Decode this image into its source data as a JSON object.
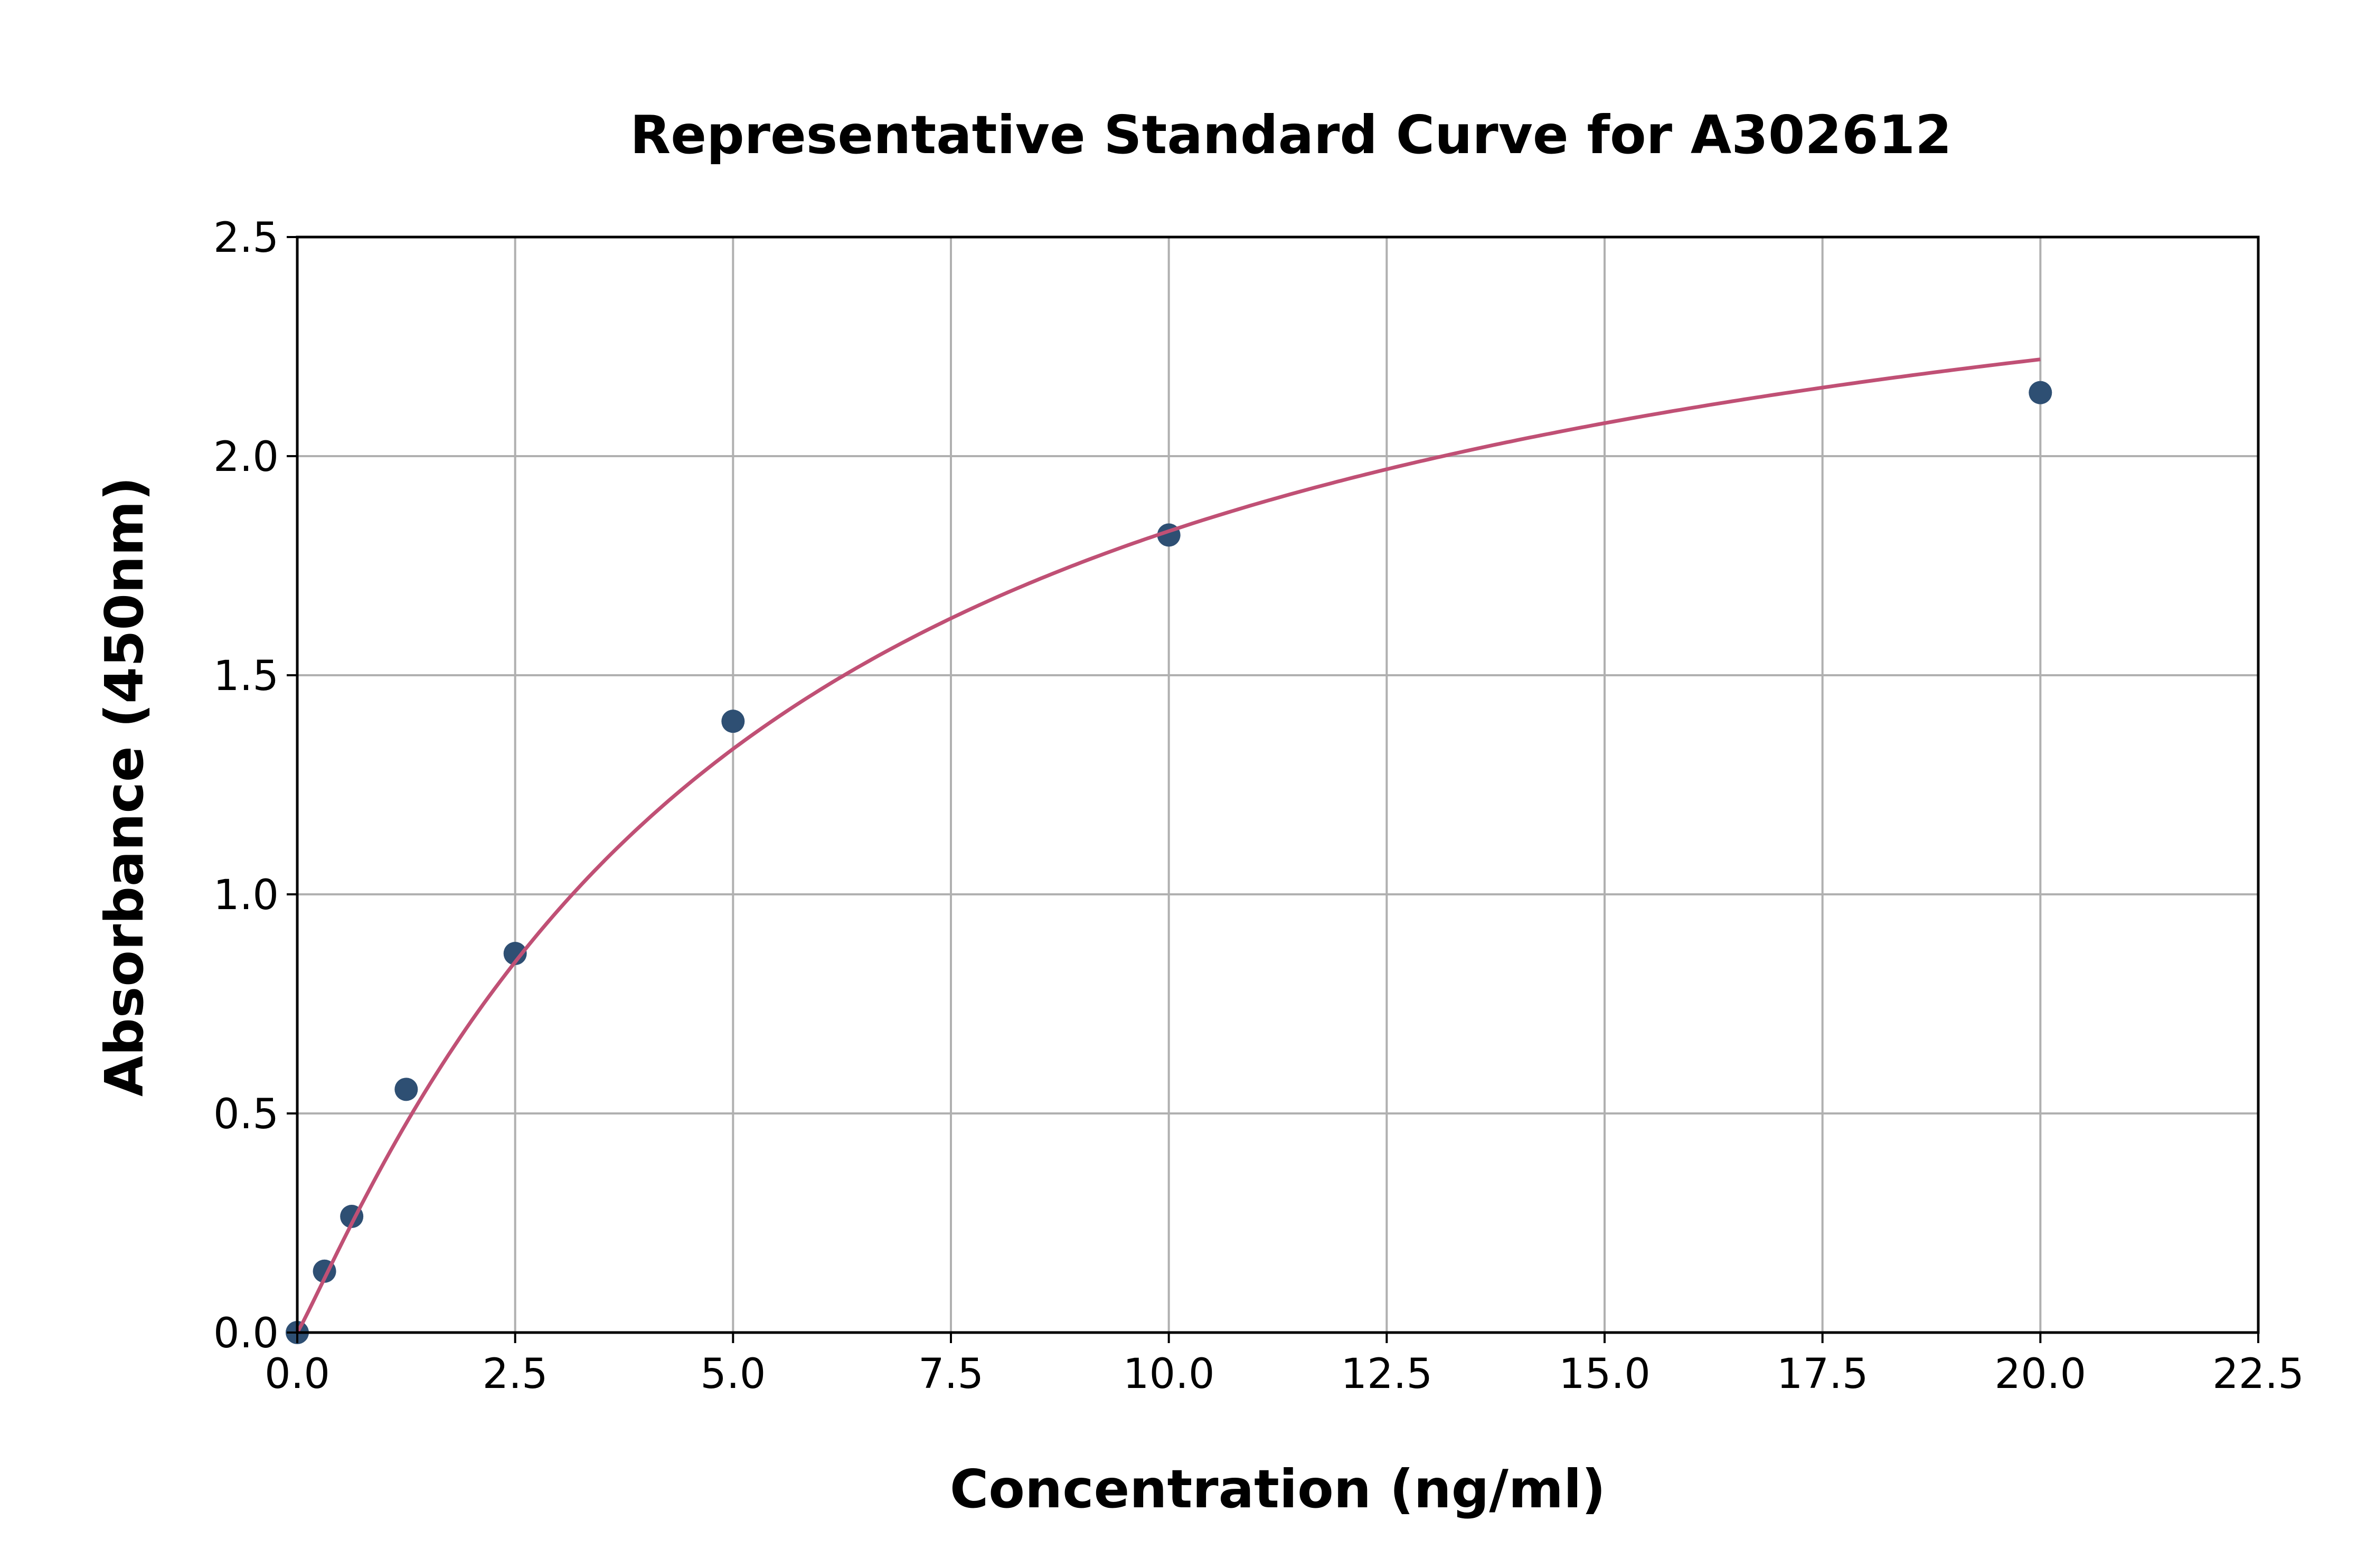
{
  "chart_data": {
    "type": "scatter",
    "title": "Representative Standard Curve for A302612",
    "xlabel": "Concentration (ng/ml)",
    "ylabel": "Absorbance (450nm)",
    "xlim": [
      0,
      22.5
    ],
    "ylim": [
      0,
      2.5
    ],
    "grid": true,
    "legend": "none",
    "x_ticks": [
      "0.0",
      "2.5",
      "5.0",
      "7.5",
      "10.0",
      "12.5",
      "15.0",
      "17.5",
      "20.0",
      "22.5"
    ],
    "y_ticks": [
      "0.0",
      "0.5",
      "1.0",
      "1.5",
      "2.0",
      "2.5"
    ],
    "series": [
      {
        "kind": "points",
        "x": [
          0,
          0.3125,
          0.625,
          1.25,
          2.5,
          5,
          10,
          20
        ],
        "y": [
          0.0,
          0.14,
          0.265,
          0.555,
          0.865,
          1.395,
          1.82,
          2.145
        ],
        "color": "#2e4f73"
      },
      {
        "kind": "fitted-curve",
        "x_range": [
          0,
          20
        ],
        "color": "#c05075"
      }
    ],
    "colors": {
      "grid": "#b0b0b0",
      "axes": "#000000"
    }
  }
}
